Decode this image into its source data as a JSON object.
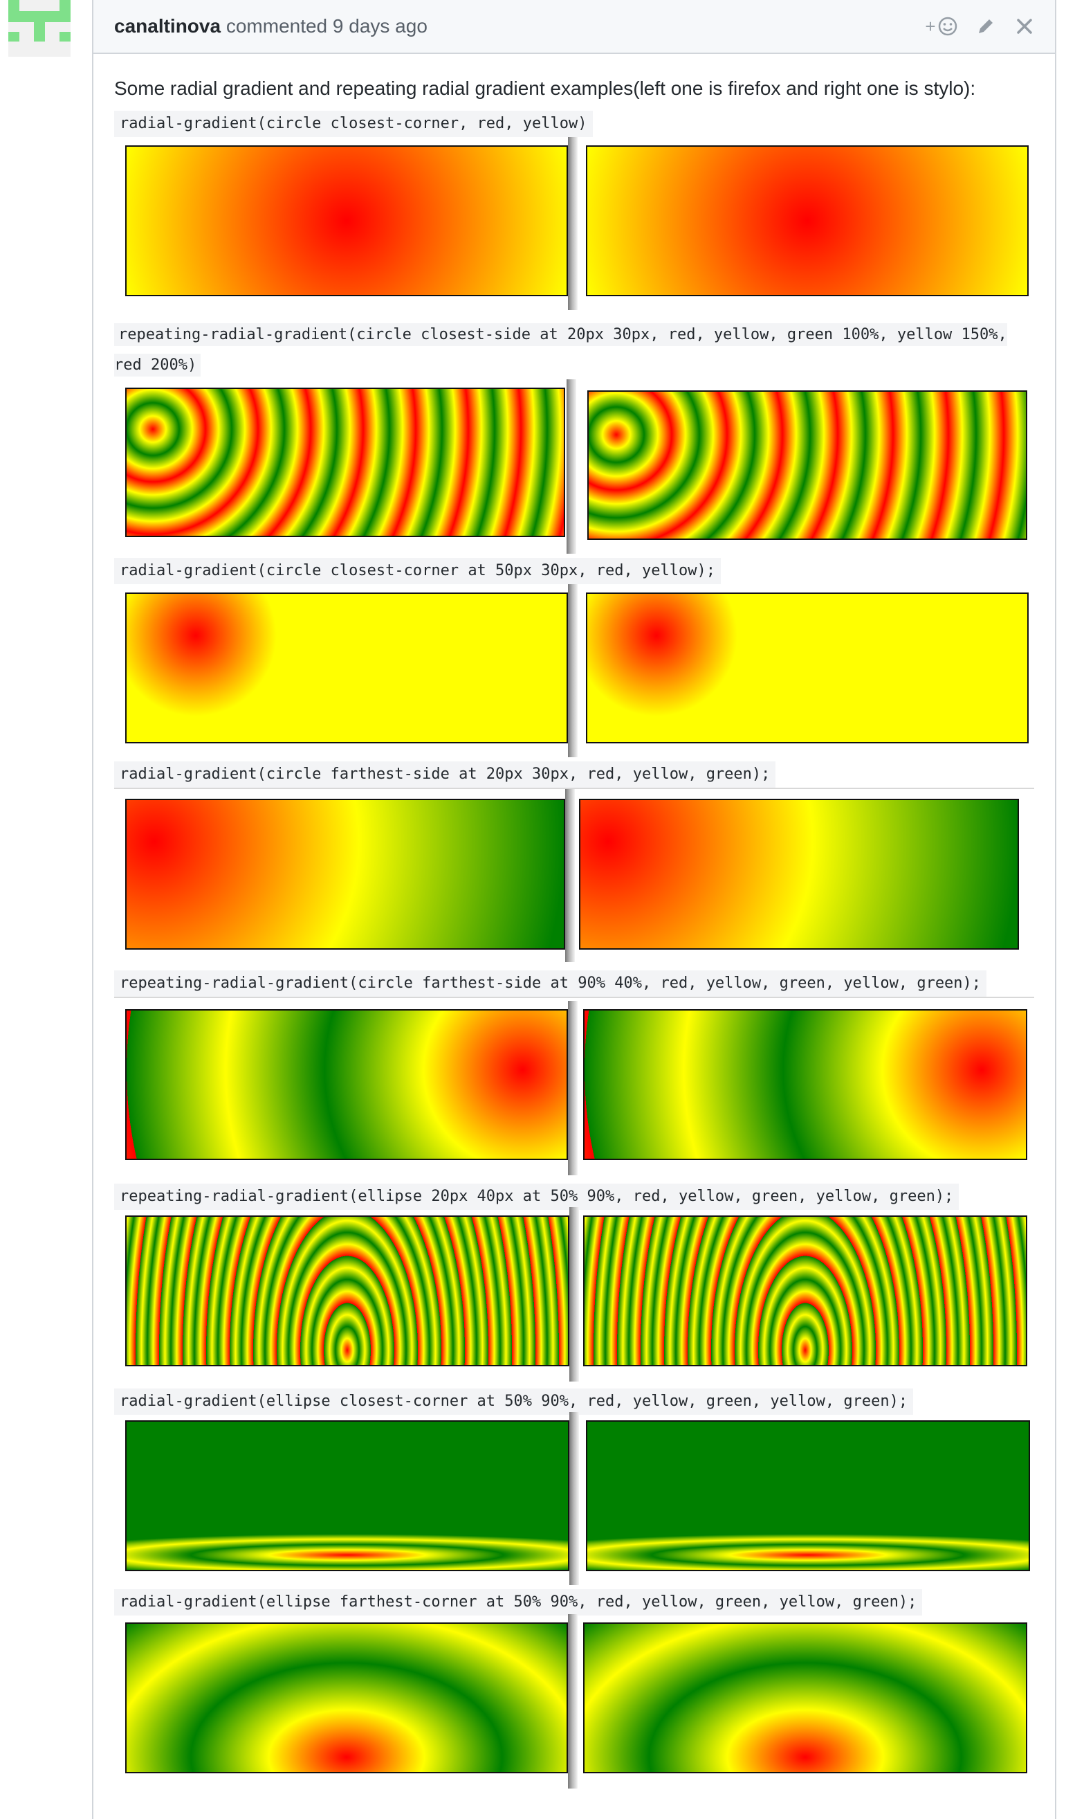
{
  "comment": {
    "author": "canaltinova",
    "meta": " commented 9 days ago",
    "reaction_icon_label": "+",
    "intro": "Some radial gradient and repeating radial gradient examples(left one is firefox and right one is stylo):"
  },
  "examples": [
    {
      "code": "radial-gradient(circle closest-corner, red, yellow)"
    },
    {
      "code": "repeating-radial-gradient(circle closest-side at 20px 30px, red, yellow, green 100%, yellow 150%, red 200%)"
    },
    {
      "code": "radial-gradient(circle closest-corner at 50px 30px, red, yellow);"
    },
    {
      "code": "radial-gradient(circle farthest-side at 20px 30px, red, yellow, green);"
    },
    {
      "code": "repeating-radial-gradient(circle farthest-side at 90% 40%, red, yellow, green, yellow, green);"
    },
    {
      "code": "repeating-radial-gradient(ellipse 20px 40px at 50% 90%, red, yellow, green, yellow, green);"
    },
    {
      "code": "radial-gradient(ellipse closest-corner at 50% 90%, red, yellow, green, yellow, green);"
    },
    {
      "code": "radial-gradient(ellipse farthest-corner at 50% 90%, red, yellow, green, yellow, green);"
    }
  ],
  "colors": {
    "avatar": "#7fe08a",
    "header_bg": "#f6f8fa",
    "border": "#d1d5da"
  }
}
